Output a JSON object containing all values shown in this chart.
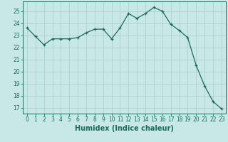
{
  "x": [
    0,
    1,
    2,
    3,
    4,
    5,
    6,
    7,
    8,
    9,
    10,
    11,
    12,
    13,
    14,
    15,
    16,
    17,
    18,
    19,
    20,
    21,
    22,
    23
  ],
  "y": [
    23.6,
    22.9,
    22.2,
    22.7,
    22.7,
    22.7,
    22.8,
    23.2,
    23.5,
    23.5,
    22.7,
    23.6,
    24.8,
    24.4,
    24.8,
    25.3,
    25.0,
    23.9,
    23.4,
    22.8,
    20.5,
    18.8,
    17.5,
    16.9
  ],
  "line_color": "#1a6b5a",
  "marker_color": "#1a6b5a",
  "bg_color": "#c8e8e8",
  "grid_color": "#b0d0d0",
  "xlabel": "Humidex (Indice chaleur)",
  "xlim": [
    -0.5,
    23.5
  ],
  "ylim": [
    16.5,
    25.8
  ],
  "yticks": [
    17,
    18,
    19,
    20,
    21,
    22,
    23,
    24,
    25
  ],
  "xticks": [
    0,
    1,
    2,
    3,
    4,
    5,
    6,
    7,
    8,
    9,
    10,
    11,
    12,
    13,
    14,
    15,
    16,
    17,
    18,
    19,
    20,
    21,
    22,
    23
  ],
  "font_color": "#1a6b5a",
  "tick_fontsize": 5.5,
  "label_fontsize": 7.0
}
